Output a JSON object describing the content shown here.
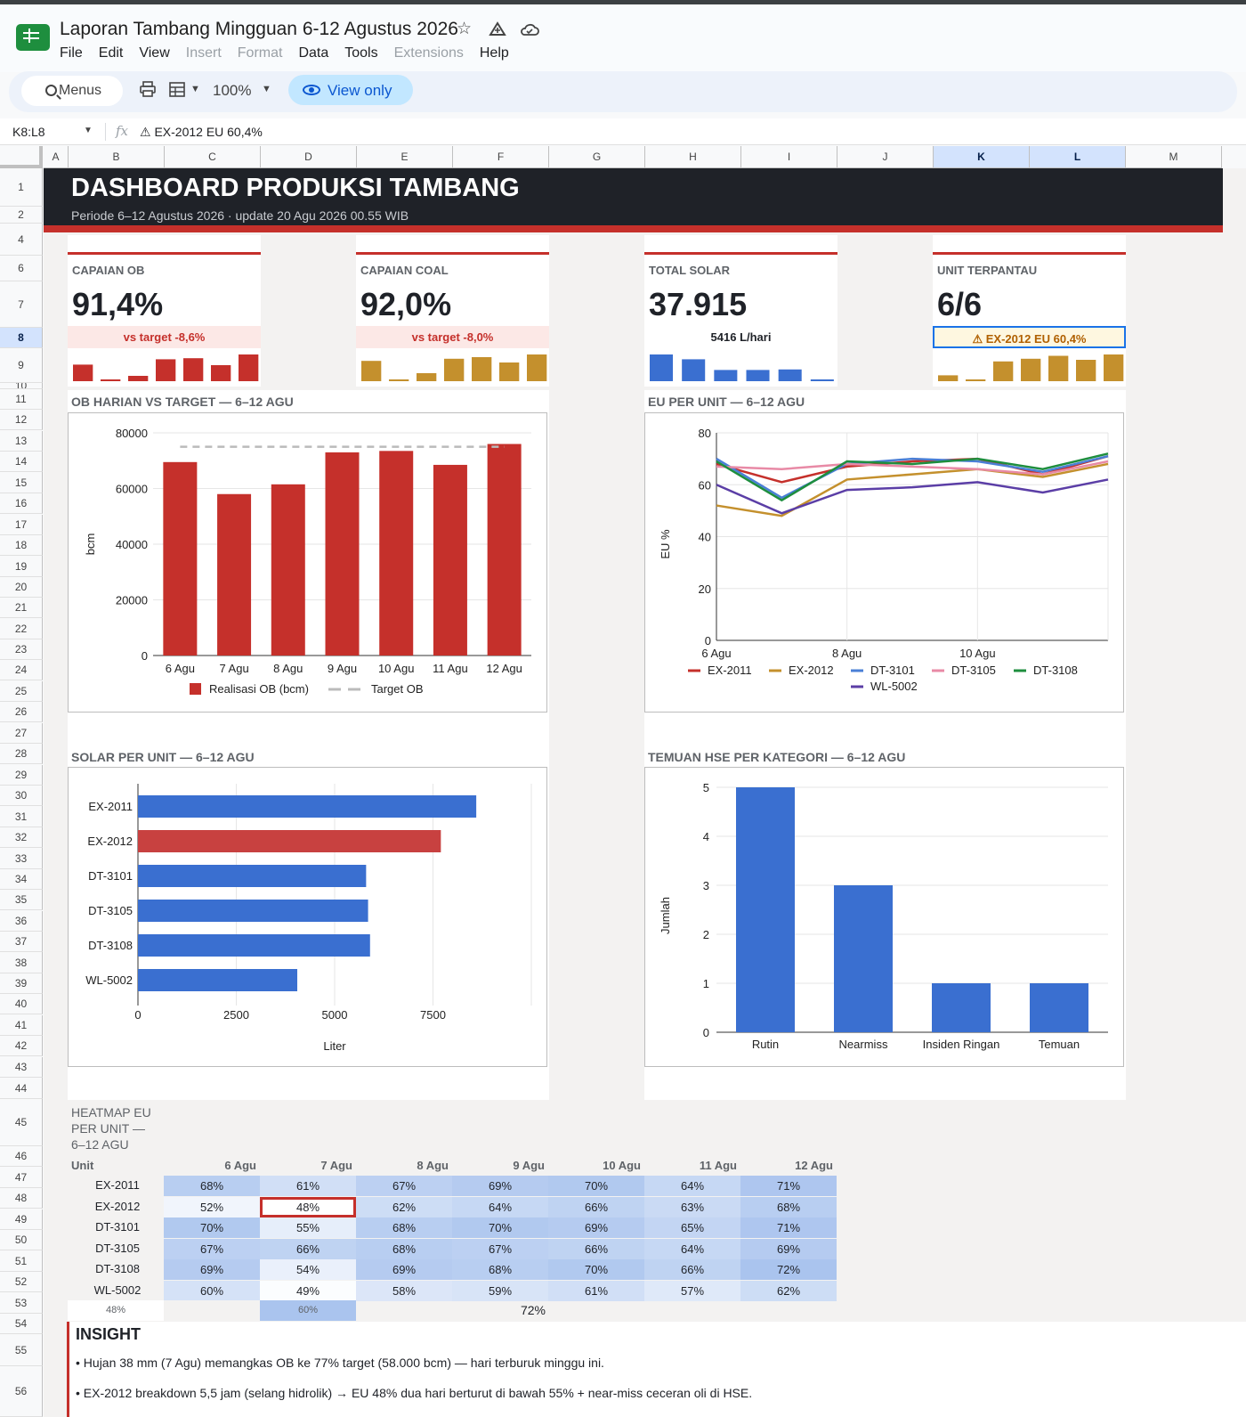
{
  "app": {
    "doc_title": "Laporan Tambang Mingguan 6-12 Agustus 2026",
    "menus": [
      "File",
      "Edit",
      "View",
      "Insert",
      "Format",
      "Data",
      "Tools",
      "Extensions",
      "Help"
    ],
    "disabled_menus": [
      "Insert",
      "Format",
      "Extensions"
    ]
  },
  "toolbar": {
    "search_label": "Menus",
    "zoom": "100%",
    "view_only": "View only"
  },
  "formula_bar": {
    "name_box": "K8:L8",
    "fx": "fx",
    "value": "⚠ EX-2012 EU 60,4%"
  },
  "grid": {
    "columns": [
      "A",
      "B",
      "C",
      "D",
      "E",
      "F",
      "G",
      "H",
      "I",
      "J",
      "K",
      "L",
      "M"
    ],
    "selected_columns": [
      "K",
      "L"
    ],
    "rows": [
      "1",
      "2",
      "4",
      "6",
      "7",
      "8",
      "9",
      "10",
      "11",
      "12",
      "13",
      "14",
      "15",
      "16",
      "17",
      "18",
      "19",
      "20",
      "21",
      "22",
      "23",
      "24",
      "25",
      "26",
      "27",
      "28",
      "29",
      "30",
      "31",
      "32",
      "33",
      "34",
      "35",
      "36",
      "37",
      "38",
      "39",
      "40",
      "41",
      "42",
      "43",
      "44",
      "45",
      "46",
      "47",
      "48",
      "49",
      "50",
      "51",
      "52",
      "53",
      "54",
      "55",
      "56"
    ],
    "selected_row": "8"
  },
  "banner": {
    "title": "DASHBOARD PRODUKSI TAMBANG",
    "subtitle": "Periode 6–12 Agustus 2026 · update 20 Agu 2026 00.55 WIB"
  },
  "kpis": [
    {
      "label": "CAPAIAN OB",
      "value": "91,4%",
      "sub": "vs target -8,6%",
      "color": "#c5302b",
      "spark_color": "#c5302b",
      "spark": [
        0.62,
        0.04,
        0.2,
        0.82,
        0.86,
        0.6,
        1.0
      ]
    },
    {
      "label": "CAPAIAN COAL",
      "value": "92,0%",
      "sub": "vs target -8,0%",
      "color": "#c4902d",
      "spark_color": "#c4902d",
      "spark": [
        0.76,
        0.03,
        0.3,
        0.84,
        0.9,
        0.7,
        1.0
      ]
    },
    {
      "label": "TOTAL SOLAR",
      "value": "37.915",
      "sub": "5416 L/hari",
      "color": "#4a7fd6",
      "spark_color": "#3a6fd0",
      "spark": [
        1.0,
        0.82,
        0.42,
        0.42,
        0.44,
        0.04
      ]
    },
    {
      "label": "UNIT TERPANTAU",
      "value": "6/6",
      "sub": "⚠ EX-2012 EU 60,4%",
      "color": "#e88aa6",
      "spark_color": "#c4902d",
      "spark": [
        0.22,
        0.03,
        0.74,
        0.84,
        0.95,
        0.8,
        1.0
      ]
    }
  ],
  "panels": {
    "ob": "OB HARIAN VS TARGET — 6–12 AGU",
    "eu": "EU PER UNIT — 6–12 AGU",
    "solar": "SOLAR PER UNIT — 6–12 AGU",
    "hse": "TEMUAN HSE PER KATEGORI — 6–12 AGU"
  },
  "chart_data": [
    {
      "type": "bar",
      "title": "OB HARIAN VS TARGET — 6–12 AGU",
      "categories": [
        "6 Agu",
        "7 Agu",
        "8 Agu",
        "9 Agu",
        "10 Agu",
        "11 Agu",
        "12 Agu"
      ],
      "series": [
        {
          "name": "Realisasi OB (bcm)",
          "values": [
            69500,
            58000,
            61500,
            73000,
            73500,
            68500,
            76000
          ],
          "color": "#c5302b"
        },
        {
          "name": "Target OB",
          "values": [
            75000,
            75000,
            75000,
            75000,
            75000,
            75000,
            75000
          ],
          "color": "#bbbbbb",
          "style": "dashed-line"
        }
      ],
      "xlabel": "",
      "ylabel": "bcm",
      "ylim": [
        0,
        80000
      ],
      "yticks": [
        0,
        20000,
        40000,
        60000,
        80000
      ],
      "legend": "bottom"
    },
    {
      "type": "line",
      "title": "EU PER UNIT — 6–12 AGU",
      "x": [
        "6 Agu",
        "7 Agu",
        "8 Agu",
        "9 Agu",
        "10 Agu",
        "11 Agu",
        "12 Agu"
      ],
      "xtick_labels": [
        "6 Agu",
        "8 Agu",
        "10 Agu"
      ],
      "series": [
        {
          "name": "EX-2011",
          "values": [
            68,
            61,
            67,
            69,
            70,
            64,
            71
          ],
          "color": "#c5302b"
        },
        {
          "name": "EX-2012",
          "values": [
            52,
            48,
            62,
            64,
            66,
            63,
            68
          ],
          "color": "#c4902d"
        },
        {
          "name": "DT-3101",
          "values": [
            70,
            55,
            68,
            70,
            69,
            65,
            71
          ],
          "color": "#4a7fd6"
        },
        {
          "name": "DT-3105",
          "values": [
            67,
            66,
            68,
            67,
            66,
            64,
            69
          ],
          "color": "#e88aa6"
        },
        {
          "name": "DT-3108",
          "values": [
            69,
            54,
            69,
            68,
            70,
            66,
            72
          ],
          "color": "#1e8e3e"
        },
        {
          "name": "WL-5002",
          "values": [
            60,
            49,
            58,
            59,
            61,
            57,
            62
          ],
          "color": "#5b3ea6"
        }
      ],
      "ylabel": "EU %",
      "ylim": [
        0,
        80
      ],
      "yticks": [
        0,
        20,
        40,
        60,
        80
      ],
      "legend": "bottom",
      "grid": true
    },
    {
      "type": "bar",
      "orientation": "horizontal",
      "title": "SOLAR PER UNIT — 6–12 AGU",
      "categories": [
        "EX-2011",
        "EX-2012",
        "DT-3101",
        "DT-3105",
        "DT-3108",
        "WL-5002"
      ],
      "values": [
        8600,
        7700,
        5800,
        5850,
        5900,
        4050
      ],
      "colors": [
        "#3a6fd0",
        "#c84140",
        "#3a6fd0",
        "#3a6fd0",
        "#3a6fd0",
        "#3a6fd0"
      ],
      "xlabel": "Liter",
      "xlim": [
        0,
        10000
      ],
      "xticks": [
        0,
        2500,
        5000,
        7500
      ]
    },
    {
      "type": "bar",
      "title": "TEMUAN HSE PER KATEGORI — 6–12 AGU",
      "categories": [
        "Rutin",
        "Nearmiss",
        "Insiden Ringan",
        "Temuan"
      ],
      "values": [
        5,
        3,
        1,
        1
      ],
      "color": "#3a6fd0",
      "ylabel": "Jumlah",
      "ylim": [
        0,
        5
      ],
      "yticks": [
        0,
        1,
        2,
        3,
        4,
        5
      ]
    }
  ],
  "heatmap": {
    "title": "HEATMAP EU PER UNIT — 6–12 AGU",
    "unit_header": "Unit",
    "days": [
      "6 Agu",
      "7 Agu",
      "8 Agu",
      "9 Agu",
      "10 Agu",
      "11 Agu",
      "12 Agu"
    ],
    "rows": [
      {
        "unit": "EX-2011",
        "values": [
          "68%",
          "61%",
          "67%",
          "69%",
          "70%",
          "64%",
          "71%"
        ],
        "num": [
          68,
          61,
          67,
          69,
          70,
          64,
          71
        ]
      },
      {
        "unit": "EX-2012",
        "values": [
          "52%",
          "48%",
          "62%",
          "64%",
          "66%",
          "63%",
          "68%"
        ],
        "num": [
          52,
          48,
          62,
          64,
          66,
          63,
          68
        ]
      },
      {
        "unit": "DT-3101",
        "values": [
          "70%",
          "55%",
          "68%",
          "70%",
          "69%",
          "65%",
          "71%"
        ],
        "num": [
          70,
          55,
          68,
          70,
          69,
          65,
          71
        ]
      },
      {
        "unit": "DT-3105",
        "values": [
          "67%",
          "66%",
          "68%",
          "67%",
          "66%",
          "64%",
          "69%"
        ],
        "num": [
          67,
          66,
          68,
          67,
          66,
          64,
          69
        ]
      },
      {
        "unit": "DT-3108",
        "values": [
          "69%",
          "54%",
          "69%",
          "68%",
          "70%",
          "66%",
          "72%"
        ],
        "num": [
          69,
          54,
          69,
          68,
          70,
          66,
          72
        ]
      },
      {
        "unit": "WL-5002",
        "values": [
          "60%",
          "49%",
          "58%",
          "59%",
          "61%",
          "57%",
          "62%"
        ],
        "num": [
          60,
          49,
          58,
          59,
          61,
          57,
          62
        ]
      }
    ],
    "legend_min": "48%",
    "legend_mid": "60%",
    "legend_max": "72%",
    "low_color": "#ffffff",
    "high_color": "#aac4ee"
  },
  "insight": {
    "title": "INSIGHT",
    "lines": [
      "• Hujan 38 mm (7 Agu) memangkas OB ke 77% target (58.000 bcm) — hari terburuk minggu ini.",
      "• EX-2012 breakdown 5,5 jam (selang hidrolik) → EU 48% dua hari berturut di bawah 55% + near-miss ceceran oli di HSE."
    ]
  }
}
